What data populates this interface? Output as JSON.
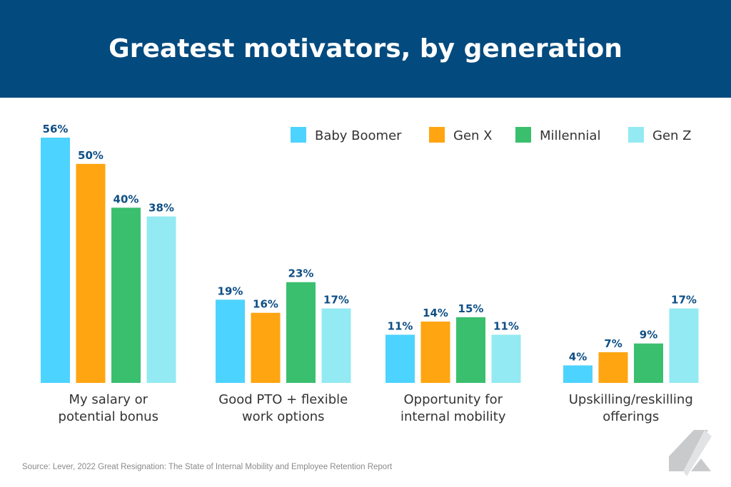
{
  "chart_data": {
    "type": "bar",
    "title": "Greatest motivators, by generation",
    "categories": [
      [
        "My salary or",
        "potential bonus"
      ],
      [
        "Good PTO + flexible",
        "work options"
      ],
      [
        "Opportunity for",
        "internal mobility"
      ],
      [
        "Upskilling/reskilling",
        "offerings"
      ]
    ],
    "series": [
      {
        "name": "Baby Boomer",
        "color": "#4dd3ff",
        "values": [
          56,
          19,
          11,
          4
        ]
      },
      {
        "name": "Gen X",
        "color": "#ffa511",
        "values": [
          50,
          16,
          14,
          7
        ]
      },
      {
        "name": "Millennial",
        "color": "#3abf6f",
        "values": [
          40,
          23,
          15,
          9
        ]
      },
      {
        "name": "Gen Z",
        "color": "#93eaf2",
        "values": [
          38,
          17,
          11,
          17
        ]
      }
    ],
    "value_suffix": "%",
    "label_color": "#0f4f85",
    "ylim": [
      0,
      56
    ],
    "grid": false,
    "legend_position": "top-right"
  },
  "header": {
    "title": "Greatest motivators, by generation",
    "background": "#034a7e"
  },
  "source": "Source: Lever, 2022 Great Resignation: The State of Internal Mobility and Employee Retention Report",
  "logo": {
    "icon": "lever-logo-icon"
  }
}
